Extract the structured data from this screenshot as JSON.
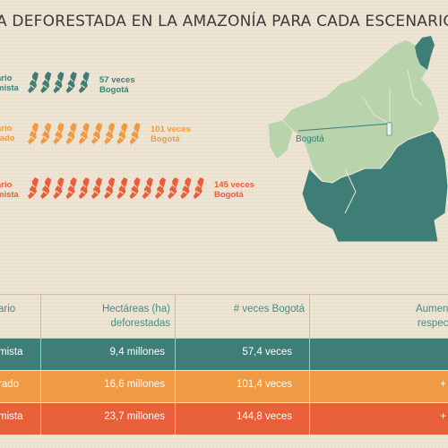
{
  "title": "A DEFORESTADA EN LA AMAZONÍA PARA CADA ESCENARIO",
  "colors": {
    "green": "#3f7e77",
    "orange": "#f19a44",
    "red": "#e8603a"
  },
  "scenarios": [
    {
      "label_line1": "ario",
      "label_line2": "mista",
      "icons": 5,
      "note_line1": "57 veces",
      "note_line2": "Bogotá",
      "color": "#3f7e77"
    },
    {
      "label_line1": "ario",
      "label_line2": "rado",
      "icons": 9,
      "note_line1": "101 veces",
      "note_line2": "Bogotá",
      "color": "#f19a44"
    },
    {
      "label_line1": "ario",
      "label_line2": "mista",
      "icons": 14,
      "note_line1": "145 veces",
      "note_line2": "Bogotá",
      "color": "#e8603a"
    }
  ],
  "map": {
    "city_label": "Bogotá"
  },
  "table": {
    "headers": [
      "ario",
      "Hectáreas (ha)\ndeforestadas",
      "# veces Bogotá",
      "Aumento\nrespecto"
    ],
    "rows": [
      {
        "col1": "mista",
        "col2": "9,4 millones",
        "col3": "57,4 veces",
        "col4": "",
        "color": "#3f7e77"
      },
      {
        "col1": "rado",
        "col2": "16,6 millones",
        "col3": "101,4 veces",
        "col4": "+",
        "color": "#f19a44"
      },
      {
        "col1": "mista",
        "col2": "23,7 millones",
        "col3": "144,8 veces",
        "col4": "+",
        "color": "#e8603a"
      }
    ]
  },
  "chart_data": {
    "type": "table",
    "title": "A DEFORESTADA EN LA AMAZONÍA PARA CADA ESCENARIO",
    "categories": [
      "mista",
      "rado",
      "mista"
    ],
    "series": [
      {
        "name": "Hectáreas (ha) deforestadas",
        "values": [
          "9,4 millones",
          "16,6 millones",
          "23,7 millones"
        ]
      },
      {
        "name": "# veces Bogotá",
        "values": [
          57.4,
          101.4,
          144.8
        ]
      }
    ],
    "icon_counts": [
      5,
      9,
      14
    ],
    "icon_notes": [
      "57 veces Bogotá",
      "101 veces Bogotá",
      "145 veces Bogotá"
    ]
  }
}
